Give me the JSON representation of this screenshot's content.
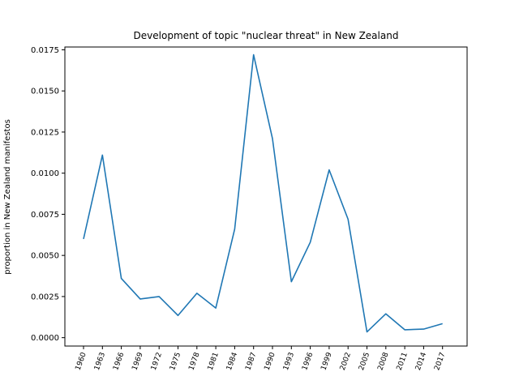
{
  "chart_data": {
    "type": "line",
    "title": "Development of topic \"nuclear threat\" in New Zealand",
    "xlabel": "",
    "ylabel": "proportion in New Zealand manifestos",
    "categories": [
      "1960",
      "1963",
      "1966",
      "1969",
      "1972",
      "1975",
      "1978",
      "1981",
      "1984",
      "1987",
      "1990",
      "1993",
      "1996",
      "1999",
      "2002",
      "2005",
      "2008",
      "2011",
      "2014",
      "2017"
    ],
    "series": [
      {
        "values": [
          0.006,
          0.0111,
          0.0036,
          0.00235,
          0.0025,
          0.00135,
          0.0027,
          0.0018,
          0.0066,
          0.0172,
          0.0121,
          0.0034,
          0.0058,
          0.0102,
          0.0072,
          0.00035,
          0.00145,
          0.00048,
          0.00052,
          0.00085
        ],
        "color": "#1f77b4"
      }
    ],
    "yticks": [
      "0.0000",
      "0.0025",
      "0.0050",
      "0.0075",
      "0.0100",
      "0.0125",
      "0.0150",
      "0.0175"
    ],
    "ylim": [
      -0.00051,
      0.01767
    ],
    "grid": false,
    "legend": "none"
  }
}
